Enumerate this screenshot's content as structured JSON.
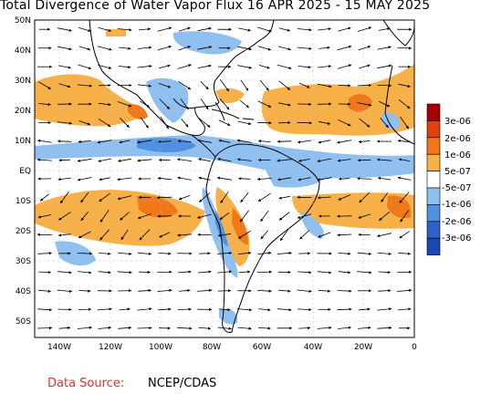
{
  "title": "Total Divergence of Water Vapor Flux 16 APR 2025 - 15 MAY 2025",
  "map": {
    "lat_labels": [
      "50N",
      "40N",
      "30N",
      "20N",
      "10N",
      "EQ",
      "10S",
      "20S",
      "30S",
      "40S",
      "50S"
    ],
    "lon_labels": [
      "140W",
      "120W",
      "100W",
      "80W",
      "60W",
      "40W",
      "20W",
      "0"
    ],
    "lat_range": [
      -55,
      50
    ],
    "lon_range": [
      -150,
      0
    ]
  },
  "colorbar": {
    "labels": [
      "3e-06",
      "2e-06",
      "1e-06",
      "5e-07",
      "-5e-07",
      "-1e-06",
      "-2e-06",
      "-3e-06"
    ],
    "colors": [
      "#a80000",
      "#e04010",
      "#f07818",
      "#f8b048",
      "#ffffff",
      "#90c0f0",
      "#5090e0",
      "#3060c8",
      "#1848b0"
    ]
  },
  "footer": {
    "source_label": "Data Source:",
    "source_value": "NCEP/CDAS"
  }
}
